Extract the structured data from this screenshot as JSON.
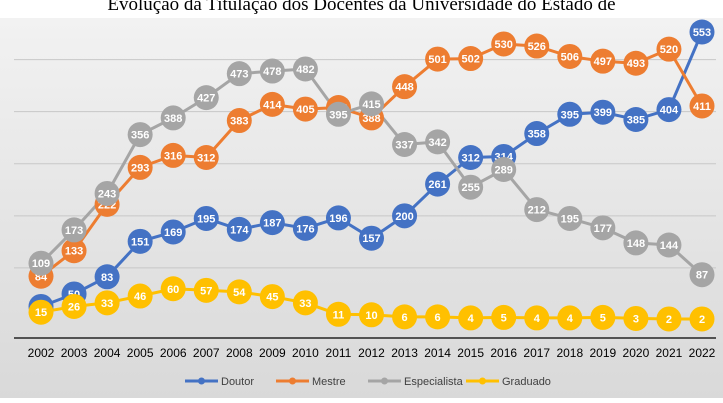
{
  "chart_data": {
    "type": "line",
    "title": "Evolução da Titulação dos Docentes da Universidade do Estado de",
    "x": [
      "2002",
      "2003",
      "2004",
      "2005",
      "2006",
      "2007",
      "2008",
      "2009",
      "2010",
      "2011",
      "2012",
      "2013",
      "2014",
      "2015",
      "2016",
      "2017",
      "2018",
      "2019",
      "2020",
      "2021",
      "2022"
    ],
    "ylim": [
      0,
      560
    ],
    "grid": true,
    "legend": "bottom",
    "series": [
      {
        "name": "Doutor",
        "color": "#4472c4",
        "values": [
          26,
          50,
          83,
          151,
          169,
          195,
          174,
          187,
          176,
          196,
          157,
          200,
          261,
          312,
          314,
          358,
          395,
          399,
          385,
          404,
          553
        ]
      },
      {
        "name": "Mestre",
        "color": "#ed7d31",
        "values": [
          84,
          133,
          222,
          293,
          316,
          312,
          383,
          414,
          405,
          408,
          388,
          448,
          501,
          502,
          530,
          526,
          506,
          497,
          493,
          520,
          411
        ]
      },
      {
        "name": "Especialista",
        "color": "#a5a5a5",
        "values": [
          109,
          173,
          243,
          356,
          388,
          427,
          473,
          478,
          482,
          395,
          415,
          337,
          342,
          255,
          289,
          212,
          195,
          177,
          148,
          144,
          87
        ]
      },
      {
        "name": "Graduado",
        "color": "#ffc000",
        "values": [
          15,
          26,
          33,
          46,
          60,
          57,
          54,
          45,
          33,
          11,
          10,
          6,
          6,
          4,
          5,
          4,
          4,
          5,
          3,
          2,
          2
        ]
      }
    ]
  }
}
